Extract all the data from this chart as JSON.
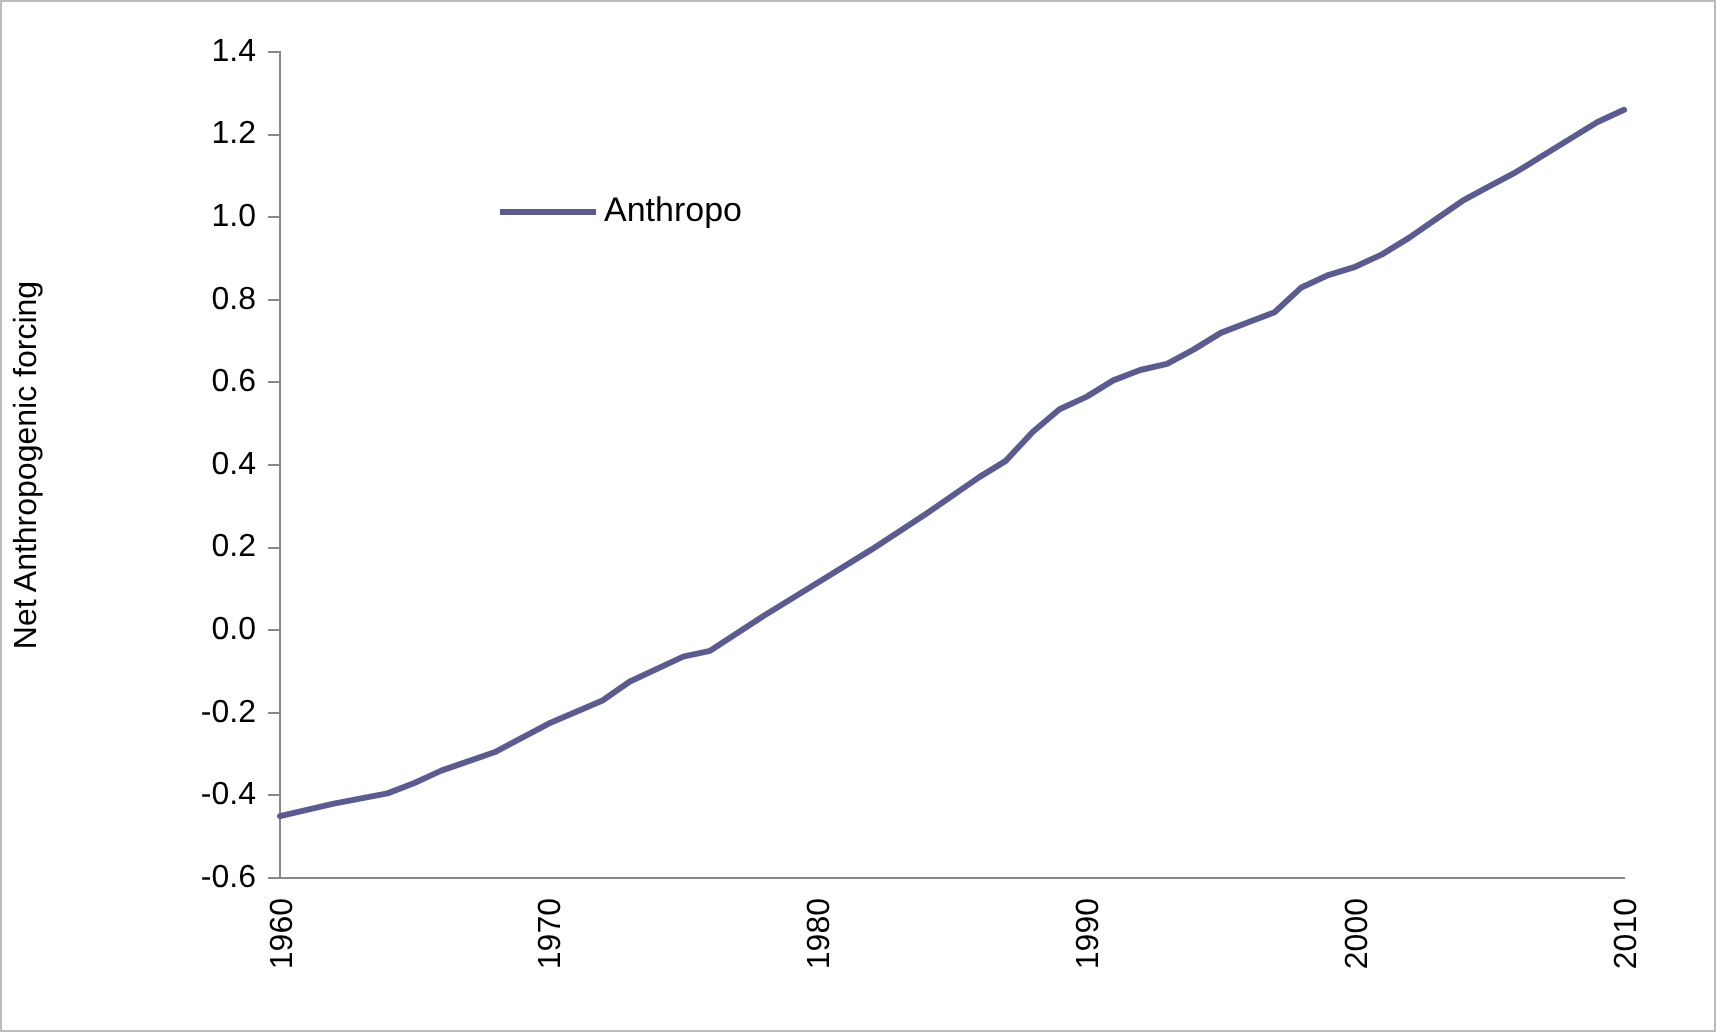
{
  "chart_data": {
    "type": "line",
    "ylabel": "Net Anthropogenic forcing",
    "x": [
      1960,
      1962,
      1964,
      1965,
      1966,
      1968,
      1970,
      1972,
      1973,
      1975,
      1976,
      1978,
      1980,
      1982,
      1984,
      1986,
      1987,
      1988,
      1989,
      1990,
      1991,
      1992,
      1993,
      1994,
      1995,
      1996,
      1997,
      1998,
      1999,
      2000,
      2001,
      2002,
      2003,
      2004,
      2005,
      2006,
      2007,
      2008,
      2009,
      2010
    ],
    "series": [
      {
        "name": "Anthropo",
        "color": "#5b5b8f",
        "values": [
          -0.45,
          -0.42,
          -0.395,
          -0.37,
          -0.34,
          -0.295,
          -0.226,
          -0.17,
          -0.125,
          -0.064,
          -0.05,
          0.035,
          0.115,
          0.195,
          0.28,
          0.37,
          0.41,
          0.48,
          0.535,
          0.565,
          0.605,
          0.63,
          0.645,
          0.68,
          0.72,
          0.745,
          0.77,
          0.83,
          0.86,
          0.88,
          0.91,
          0.95,
          0.995,
          1.04,
          1.075,
          1.11,
          1.15,
          1.19,
          1.23,
          1.26
        ]
      }
    ],
    "xlim": [
      1960,
      2010
    ],
    "xticks": [
      1960,
      1970,
      1980,
      1990,
      2000,
      2010
    ],
    "ylim": [
      -0.6,
      1.4
    ],
    "yticks": [
      {
        "value": -0.6,
        "label": "-0.6"
      },
      {
        "value": -0.4,
        "label": "-0.4"
      },
      {
        "value": -0.2,
        "label": "-0.2"
      },
      {
        "value": 0,
        "label": "0.0"
      },
      {
        "value": 0.2,
        "label": "0.2"
      },
      {
        "value": 0.4,
        "label": "0.4"
      },
      {
        "value": 0.6,
        "label": "0.6"
      },
      {
        "value": 0.8,
        "label": "0.8"
      },
      {
        "value": 1,
        "label": "1.0"
      },
      {
        "value": 1.2,
        "label": "1.2"
      },
      {
        "value": 1.4,
        "label": "1.4"
      }
    ],
    "grid": false,
    "legend": "top left",
    "marker": "none",
    "line_style": "solid"
  }
}
